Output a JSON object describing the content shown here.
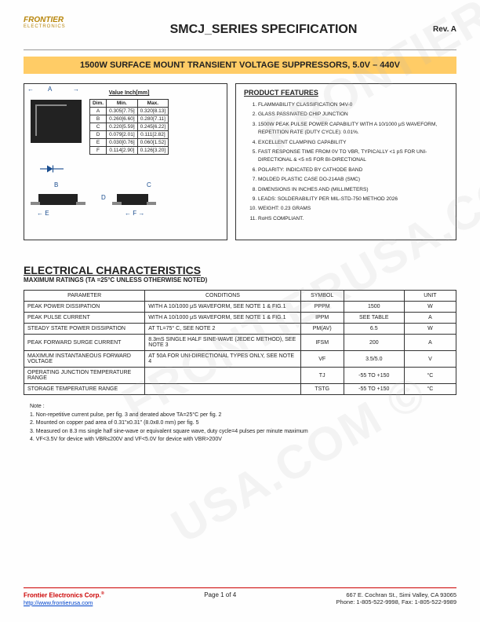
{
  "header": {
    "title": "SMCJ_SERIES SPECIFICATION",
    "rev": "Rev. A",
    "logo_brand": "FRONTIER",
    "logo_sub": "ELECTRONICS"
  },
  "banner": "1500W SURFACE MOUNT TRANSIENT VOLTAGE SUPPRESSORS, 5.0V – 440V",
  "dim_table": {
    "header_main": "Value Inch[mm]",
    "cols": [
      "Dim.",
      "Min.",
      "Max."
    ],
    "rows": [
      [
        "A",
        "0.305[7.75]",
        "0.320[8.13]"
      ],
      [
        "B",
        "0.260[6.60]",
        "0.280[7.11]"
      ],
      [
        "C",
        "0.220[5.59]",
        "0.245[6.22]"
      ],
      [
        "D",
        "0.079[2.01]",
        "0.111[2.82]"
      ],
      [
        "E",
        "0.030[0.76]",
        "0.060[1.52]"
      ],
      [
        "F",
        "0.114[2.90]",
        "0.126[3.20]"
      ]
    ]
  },
  "features": {
    "title": "PRODUCT FEATURES",
    "items": [
      "FLAMMABILITY CLASSIFICATION 94V-0",
      "GLASS PASSIVATED CHIP JUNCTION",
      "1500W PEAK PULSE POWER CAPABILITY WITH A 10/1000 μS WAVEFORM, REPETITION RATE (DUTY CYCLE): 0.01%.",
      "EXCELLENT CLAMPING CAPABILITY",
      "FAST RESPONSE TIME FROM 0V TO VBR, TYPICALLY <1 pS FOR UNI-DIRECTIONAL & <5 nS FOR BI-DIRECTIONAL",
      "POLARITY: INDICATED BY CATHODE BAND",
      "MOLDED PLASTIC CASE DO-214AB (SMC)",
      "DIMENSIONS IN INCHES AND (MILLIMETERS)",
      "LEADS: SOLDERABILITY PER MIL-STD-750 METHOD 2026",
      "WEIGHT: 0.23 GRAMS",
      "RoHS COMPLIANT."
    ]
  },
  "elec": {
    "title": "ELECTRICAL CHARACTERISTICS",
    "sub": "MAXIMUM RATINGS (TA =25°C UNLESS OTHERWISE NOTED)",
    "cols": [
      "PARAMETER",
      "CONDITIONS",
      "SYMBOL",
      "",
      "UNIT"
    ],
    "rows": [
      [
        "PEAK POWER DISSIPATION",
        "WITH A 10/1000 μS WAVEFORM, SEE NOTE 1 & FIG.1",
        "PPPM",
        "1500",
        "W"
      ],
      [
        "PEAK PULSE CURRENT",
        "WITH A 10/1000 μS WAVEFORM, SEE NOTE 1 & FIG.1",
        "IPPM",
        "SEE TABLE",
        "A"
      ],
      [
        "STEADY STATE POWER DISSIPATION",
        "AT TL=75° C, SEE NOTE 2",
        "PM(AV)",
        "6.5",
        "W"
      ],
      [
        "PEAK FORWARD SURGE CURRENT",
        "8.3mS SINGLE HALF SINE-WAVE (JEDEC METHOD), SEE NOTE 3",
        "IFSM",
        "200",
        "A"
      ],
      [
        "MAXIMUM INSTANTANEOUS FORWARD VOLTAGE",
        "AT 50A FOR UNI-DIRECTIONAL TYPES ONLY, SEE NOTE 4",
        "VF",
        "3.5/5.0",
        "V"
      ],
      [
        "OPERATING JUNCTION TEMPERATURE RANGE",
        "",
        "TJ",
        "-55 TO +150",
        "°C"
      ],
      [
        "STORAGE TEMPERATURE RANGE",
        "",
        "TSTG",
        "-55 TO +150",
        "°C"
      ]
    ]
  },
  "notes": {
    "label": "Note :",
    "items": [
      "Non-repetitive current pulse, per fig. 3 and derated above TA=25°C per fig. 2",
      "Mounted on copper pad area of 0.31\"x0.31\" (8.0x8.0 mm) per fig. 5",
      "Measured on 8.3 ms single half sine-wave or equivalent square wave, duty cycle=4 pulses per minute maximum",
      "VF<3.5V for device with VBR≤200V and VF<5.0V for device with VBR>200V"
    ]
  },
  "footer": {
    "company": "Frontier Electronics Corp.",
    "url": "http://www.frontierusa.com",
    "page": "Page 1 of 4",
    "addr1": "667 E. Cochran St., Simi Valley, CA 93065",
    "addr2": "Phone: 1-805-522-9998, Fax: 1-805-522-9989"
  },
  "colors": {
    "banner_bg": "#ffcc66",
    "accent": "#b8860b",
    "link": "#0044cc",
    "red": "#c00"
  }
}
